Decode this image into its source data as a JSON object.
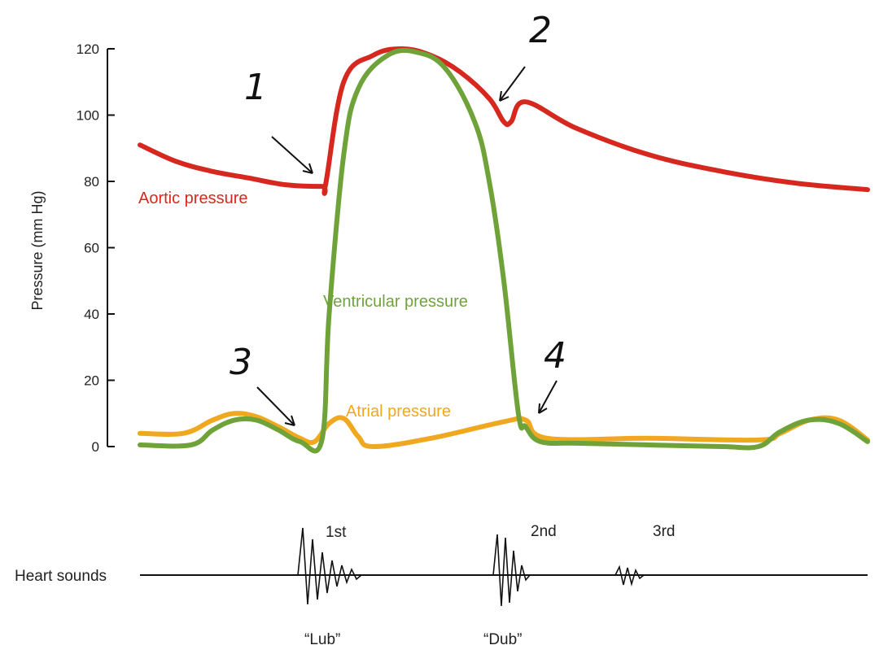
{
  "colors": {
    "aortic": "#d6281f",
    "ventricular": "#6fa33a",
    "atrial": "#f0a820",
    "axis": "#111111",
    "text": "#222222"
  },
  "chart_data": {
    "type": "line",
    "ylabel": "Pressure (mm Hg)",
    "ylim": [
      0,
      120
    ],
    "yticks": [
      "0",
      "20",
      "40",
      "60",
      "80",
      "100",
      "120"
    ],
    "x_unit": "relative time within one cardiac cycle (0-1, unlabeled axis)",
    "grid": false,
    "legend": "inline-labels",
    "series": [
      {
        "name": "Aortic pressure",
        "color": "#d6281f",
        "x": [
          0.0,
          0.05,
          0.1,
          0.15,
          0.2,
          0.25,
          0.255,
          0.28,
          0.32,
          0.36,
          0.4,
          0.44,
          0.48,
          0.5,
          0.51,
          0.53,
          0.6,
          0.7,
          0.8,
          0.9,
          1.0
        ],
        "y": [
          91,
          86,
          83,
          81,
          79,
          78.5,
          79,
          110,
          118,
          120,
          118,
          113,
          105,
          98,
          98,
          104,
          96,
          88,
          83,
          79.5,
          77.5
        ]
      },
      {
        "name": "Ventricular pressure",
        "color": "#6fa33a",
        "x": [
          0.0,
          0.07,
          0.1,
          0.13,
          0.16,
          0.19,
          0.22,
          0.25,
          0.26,
          0.28,
          0.3,
          0.34,
          0.38,
          0.42,
          0.46,
          0.48,
          0.5,
          0.52,
          0.53,
          0.55,
          0.6,
          0.7,
          0.8,
          0.85,
          0.88,
          0.92,
          0.96,
          1.0
        ],
        "y": [
          0.5,
          0.5,
          5,
          8,
          8,
          5,
          1.5,
          2,
          40,
          88,
          108,
          118,
          119,
          114,
          98,
          80,
          50,
          10,
          6,
          1.5,
          1,
          0.5,
          0,
          0,
          4.5,
          8,
          7,
          1.5
        ]
      },
      {
        "name": "Atrial pressure",
        "color": "#f0a820",
        "x": [
          0.0,
          0.06,
          0.1,
          0.13,
          0.16,
          0.19,
          0.22,
          0.24,
          0.26,
          0.28,
          0.3,
          0.32,
          0.4,
          0.5,
          0.53,
          0.56,
          0.7,
          0.85,
          0.88,
          0.92,
          0.96,
          1.0
        ],
        "y": [
          4,
          4,
          8,
          10,
          9,
          6,
          2.5,
          1.5,
          7,
          8.5,
          3,
          0,
          2.5,
          7.5,
          8,
          2.5,
          2.5,
          2,
          4,
          8,
          8,
          2
        ]
      }
    ],
    "annotations": [
      {
        "text": "1",
        "points_to": "Aortic pressure",
        "at_x": 0.255,
        "at_y": 79
      },
      {
        "text": "2",
        "points_to": "Aortic pressure",
        "at_x": 0.505,
        "at_y": 98
      },
      {
        "text": "3",
        "points_to": "Ventricular pressure",
        "at_x": 0.24,
        "at_y": 2
      },
      {
        "text": "4",
        "points_to": "Ventricular pressure",
        "at_x": 0.53,
        "at_y": 8
      }
    ]
  },
  "heart_sounds": {
    "label": "Heart sounds",
    "sounds": [
      {
        "name": "1st",
        "onomatopoeia": "“Lub”"
      },
      {
        "name": "2nd",
        "onomatopoeia": "“Dub”"
      },
      {
        "name": "3rd",
        "onomatopoeia": ""
      }
    ]
  }
}
